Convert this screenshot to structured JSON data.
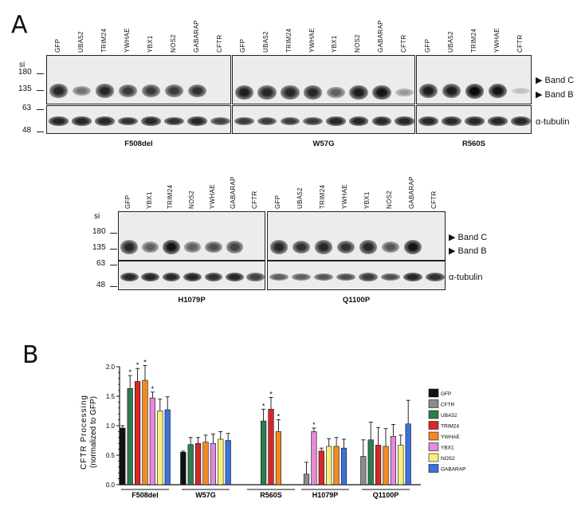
{
  "panel_a": {
    "letter": "A",
    "mw_header": "si",
    "mw_markers": [
      "180",
      "135",
      "63",
      "48"
    ],
    "band_labels": [
      "▶ Band C",
      "▶ Band B"
    ],
    "tubulin_label": "α-tubulin",
    "row1": {
      "blots": [
        {
          "caption": "F508del",
          "lanes": [
            "GFP",
            "UBA52",
            "TRIM24",
            "YWHAE",
            "YBX1",
            "NOS2",
            "GABARAP",
            "CFTR"
          ],
          "band_intensity": [
            0.85,
            0.45,
            0.85,
            0.75,
            0.75,
            0.75,
            0.8,
            0.0
          ],
          "tubulin_intensity": [
            0.85,
            0.85,
            0.85,
            0.8,
            0.85,
            0.8,
            0.85,
            0.7
          ]
        },
        {
          "caption": "W57G",
          "lanes": [
            "GFP",
            "UBA52",
            "TRIM24",
            "YWHAE",
            "YBX1",
            "NOS2",
            "GABARAP",
            "CFTR"
          ],
          "band_intensity": [
            0.9,
            0.85,
            0.85,
            0.85,
            0.55,
            0.9,
            0.95,
            0.25
          ],
          "tubulin_intensity": [
            0.75,
            0.75,
            0.75,
            0.75,
            0.85,
            0.85,
            0.85,
            0.85
          ]
        },
        {
          "caption": "R560S",
          "lanes": [
            "GFP",
            "UBA52",
            "TRIM24",
            "YWHAE",
            "CFTR"
          ],
          "band_intensity": [
            0.9,
            0.9,
            1.0,
            0.95,
            0.05
          ],
          "tubulin_intensity": [
            0.85,
            0.85,
            0.85,
            0.85,
            0.85
          ]
        }
      ]
    },
    "row2": {
      "blots": [
        {
          "caption": "H1079P",
          "lanes": [
            "GFP",
            "YBX1",
            "TRIM24",
            "NOS2",
            "YWHAE",
            "GABARAP",
            "CFTR"
          ],
          "band_intensity": [
            0.85,
            0.55,
            0.95,
            0.55,
            0.65,
            0.7,
            0.0
          ],
          "tubulin_intensity": [
            0.85,
            0.85,
            0.85,
            0.85,
            0.8,
            0.85,
            0.7
          ]
        },
        {
          "caption": "Q1100P",
          "lanes": [
            "GFP",
            "UBA52",
            "TRIM24",
            "YWHAE",
            "YBX1",
            "NOS2",
            "GABARAP",
            "CFTR"
          ],
          "band_intensity": [
            0.85,
            0.8,
            0.85,
            0.8,
            0.85,
            0.6,
            0.95,
            0.0
          ],
          "tubulin_intensity": [
            0.55,
            0.55,
            0.6,
            0.65,
            0.75,
            0.65,
            0.85,
            0.8
          ]
        }
      ]
    }
  },
  "panel_b": {
    "letter": "B",
    "ylabel_line1": "CFTR Processing",
    "ylabel_line2": "(normalized to GFP)",
    "yticks": [
      "0.0",
      "0.5",
      "1.0",
      "1.5",
      "2.0"
    ]
  },
  "chart_data": {
    "type": "bar",
    "categories": [
      "F508del",
      "W57G",
      "R560S",
      "H1079P",
      "Q1100P"
    ],
    "ylim": [
      0,
      2.0
    ],
    "colors": {
      "GFP": "#111111",
      "CFTR": "#8c8c8c",
      "UBA52": "#2e7d4f",
      "TRIM24": "#d62828",
      "YWHAE": "#f08a24",
      "YBX1": "#e58ad6",
      "NOS2": "#f7f07a",
      "GABARAP": "#3b72d9"
    },
    "legend_order": [
      "GFP",
      "CFTR",
      "UBA52",
      "TRIM24",
      "YWHAE",
      "YBX1",
      "NOS2",
      "GABARAP"
    ],
    "groups": [
      {
        "category": "F508del",
        "bars": [
          {
            "series": "GFP",
            "value": 0.96,
            "err": 0.04
          },
          {
            "series": "UBA52",
            "value": 1.63,
            "err": 0.22,
            "star": true
          },
          {
            "series": "TRIM24",
            "value": 1.75,
            "err": 0.22,
            "star": true
          },
          {
            "series": "YWHAE",
            "value": 1.77,
            "err": 0.25,
            "star": true
          },
          {
            "series": "YBX1",
            "value": 1.47,
            "err": 0.1,
            "star": true
          },
          {
            "series": "NOS2",
            "value": 1.25,
            "err": 0.2
          },
          {
            "series": "GABARAP",
            "value": 1.27,
            "err": 0.22
          }
        ]
      },
      {
        "category": "W57G",
        "bars": [
          {
            "series": "GFP",
            "value": 0.55,
            "err": 0.02
          },
          {
            "series": "UBA52",
            "value": 0.68,
            "err": 0.12
          },
          {
            "series": "TRIM24",
            "value": 0.7,
            "err": 0.1
          },
          {
            "series": "YWHAE",
            "value": 0.72,
            "err": 0.12
          },
          {
            "series": "YBX1",
            "value": 0.7,
            "err": 0.16
          },
          {
            "series": "NOS2",
            "value": 0.77,
            "err": 0.13
          },
          {
            "series": "GABARAP",
            "value": 0.75,
            "err": 0.12
          }
        ]
      },
      {
        "category": "R560S",
        "bars": [
          {
            "series": "UBA52",
            "value": 1.08,
            "err": 0.2,
            "star": true
          },
          {
            "series": "TRIM24",
            "value": 1.28,
            "err": 0.2,
            "star": true
          },
          {
            "series": "YWHAE",
            "value": 0.9,
            "err": 0.2,
            "star": true
          }
        ]
      },
      {
        "category": "H1079P",
        "bars": [
          {
            "series": "CFTR",
            "value": 0.18,
            "err": 0.2
          },
          {
            "series": "YBX1",
            "value": 0.9,
            "err": 0.06,
            "star": true
          },
          {
            "series": "TRIM24",
            "value": 0.57,
            "err": 0.05
          },
          {
            "series": "NOS2",
            "value": 0.65,
            "err": 0.13
          },
          {
            "series": "YWHAE",
            "value": 0.65,
            "err": 0.15
          },
          {
            "series": "GABARAP",
            "value": 0.62,
            "err": 0.15
          }
        ]
      },
      {
        "category": "Q1100P",
        "bars": [
          {
            "series": "CFTR",
            "value": 0.48,
            "err": 0.28
          },
          {
            "series": "UBA52",
            "value": 0.76,
            "err": 0.3
          },
          {
            "series": "TRIM24",
            "value": 0.67,
            "err": 0.3
          },
          {
            "series": "YWHAE",
            "value": 0.65,
            "err": 0.3
          },
          {
            "series": "YBX1",
            "value": 0.82,
            "err": 0.2
          },
          {
            "series": "NOS2",
            "value": 0.67,
            "err": 0.17
          },
          {
            "series": "GABARAP",
            "value": 1.03,
            "err": 0.4
          }
        ]
      }
    ]
  }
}
